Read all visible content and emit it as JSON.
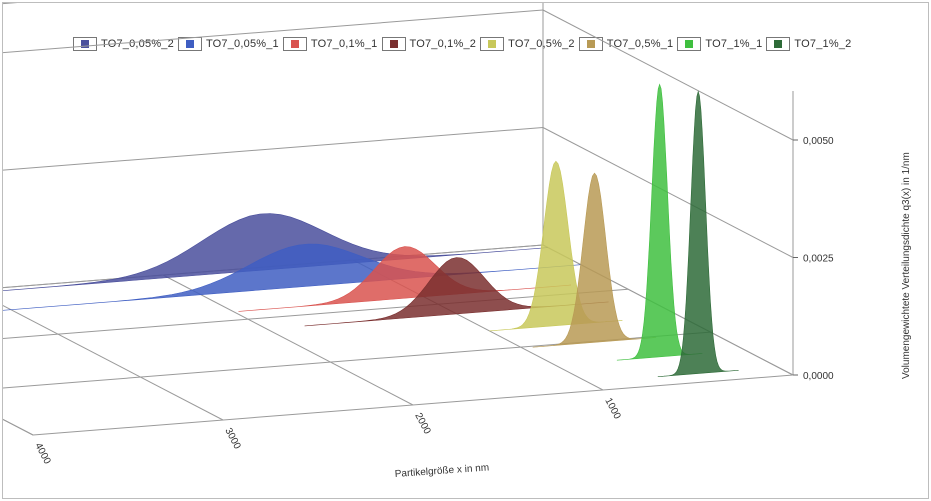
{
  "chart_data": {
    "type": "area",
    "view": "3d-perspective",
    "xlabel": "Partikelgröße x in nm",
    "ylabel": "Volumengewichtete Verteilungsdichte q3(x) in 1/nm",
    "x_ticks": [
      "4000",
      "3000",
      "2000",
      "1000"
    ],
    "y_ticks": [
      "0,0000",
      "0,0025",
      "0,0050"
    ],
    "x_range": [
      0,
      4000
    ],
    "ylim": [
      0,
      0.006
    ],
    "legend_position": "top",
    "grid": true,
    "series": [
      {
        "name": "TO7_0,05%_2",
        "color": "#4a4f9c",
        "peak_x": 1500,
        "peak_y": 0.0012,
        "width": 700
      },
      {
        "name": "TO7_0,05%_1",
        "color": "#3f5ec2",
        "peak_x": 1450,
        "peak_y": 0.0009,
        "width": 650
      },
      {
        "name": "TO7_0,1%_1",
        "color": "#d9534f",
        "peak_x": 1100,
        "peak_y": 0.0011,
        "width": 350
      },
      {
        "name": "TO7_0,1%_2",
        "color": "#7a2f2f",
        "peak_x": 1000,
        "peak_y": 0.0012,
        "width": 320
      },
      {
        "name": "TO7_0,5%_2",
        "color": "#c8c85a",
        "peak_x": 650,
        "peak_y": 0.0035,
        "width": 140
      },
      {
        "name": "TO7_0,5%_1",
        "color": "#b89a55",
        "peak_x": 620,
        "peak_y": 0.0036,
        "width": 130
      },
      {
        "name": "TO7_1%_1",
        "color": "#3fbf3f",
        "peak_x": 450,
        "peak_y": 0.0058,
        "width": 90
      },
      {
        "name": "TO7_1%_2",
        "color": "#2e6b38",
        "peak_x": 420,
        "peak_y": 0.006,
        "width": 85
      }
    ]
  }
}
